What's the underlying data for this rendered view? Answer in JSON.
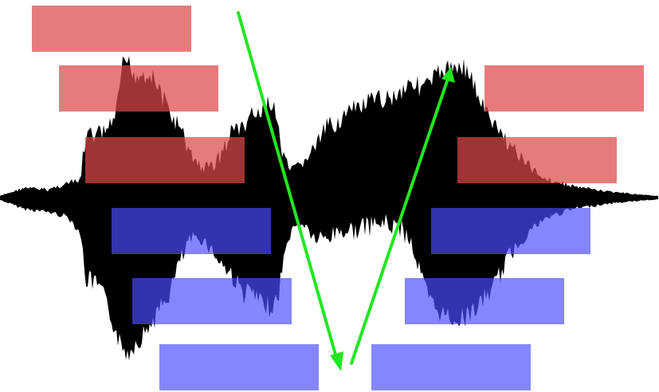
{
  "colors": {
    "background": "#ffffff",
    "waveform": "#000000",
    "upper_box": "#d94a4a",
    "lower_box": "#4b4bff",
    "arrow": "#22e622"
  },
  "diagram": {
    "upper_box_count": 6,
    "lower_box_count": 6,
    "arrow_count": 2,
    "arrows": [
      {
        "direction": "down"
      },
      {
        "direction": "up"
      }
    ]
  }
}
